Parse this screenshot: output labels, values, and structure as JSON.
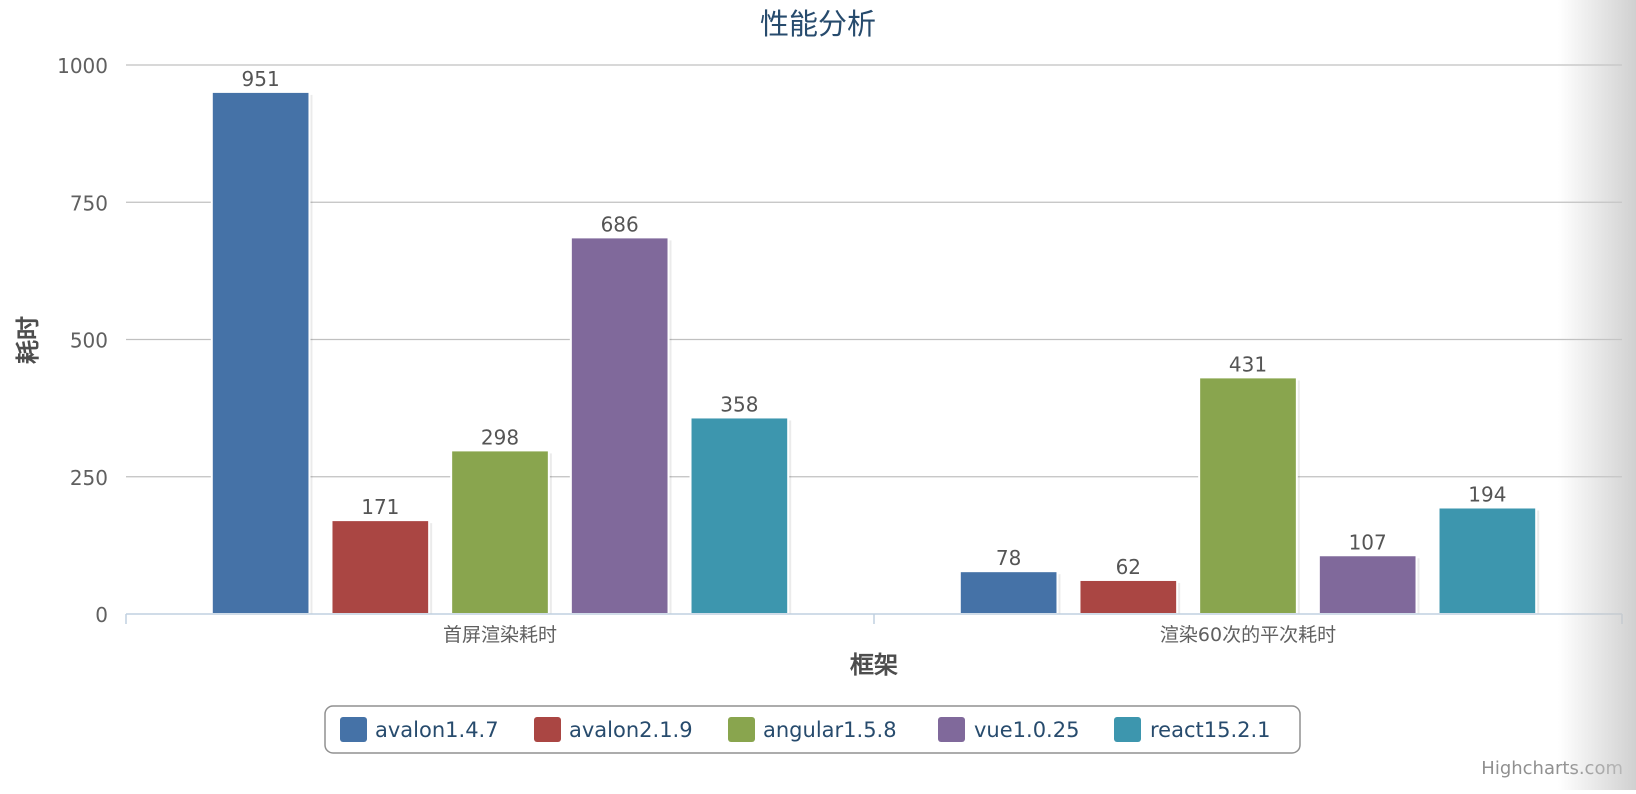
{
  "chart_data": {
    "type": "bar",
    "title": "性能分析",
    "xlabel": "框架",
    "ylabel": "耗时",
    "categories": [
      "首屏渲染耗时",
      "渲染60次的平次耗时"
    ],
    "series": [
      {
        "name": "avalon1.4.7",
        "color": "#4572A7",
        "values": [
          951,
          78
        ]
      },
      {
        "name": "avalon2.1.9",
        "color": "#AA4643",
        "values": [
          171,
          62
        ]
      },
      {
        "name": "angular1.5.8",
        "color": "#89A54E",
        "values": [
          298,
          431
        ]
      },
      {
        "name": "vue1.0.25",
        "color": "#80699B",
        "values": [
          686,
          107
        ]
      },
      {
        "name": "react15.2.1",
        "color": "#3D96AE",
        "values": [
          358,
          194
        ]
      }
    ],
    "ylim": [
      0,
      1000
    ],
    "yticks": [
      0,
      250,
      500,
      750,
      1000
    ],
    "grid": true,
    "legend_position": "bottom-center",
    "credits": "Highcharts.com"
  }
}
